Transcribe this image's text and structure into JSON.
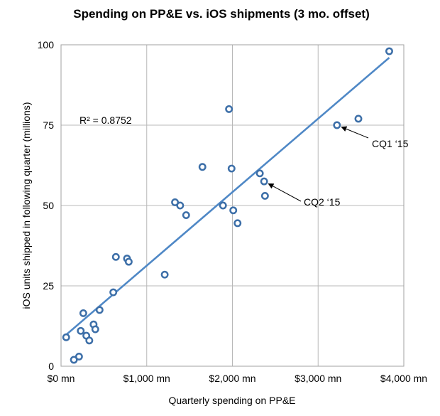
{
  "chart_data": {
    "type": "scatter",
    "title": "Spending on PP&E vs. iOS shipments (3 mo. offset)",
    "xlabel": "Quarterly spending on PP&E",
    "ylabel": "iOS units shipped in following quarter (millions)",
    "xlim": [
      0,
      4000
    ],
    "ylim": [
      0,
      100
    ],
    "x_ticks": [
      0,
      1000,
      2000,
      3000,
      4000
    ],
    "x_tick_labels": [
      "$0 mn",
      "$1,000 mn",
      "$2,000 mn",
      "$3,000 mn",
      "$4,000 mn"
    ],
    "y_ticks": [
      0,
      25,
      50,
      75,
      100
    ],
    "y_tick_labels": [
      "0",
      "25",
      "50",
      "75",
      "100"
    ],
    "grid": true,
    "legend": "none",
    "series_color": "#3d6fa8",
    "trendline_color": "#4f88c6",
    "r_squared_label": "R² = 0.8752",
    "trendline": {
      "x": [
        60,
        3830
      ],
      "y": [
        9.8,
        96.0
      ]
    },
    "points": [
      {
        "x": 60,
        "y": 9
      },
      {
        "x": 150,
        "y": 2
      },
      {
        "x": 210,
        "y": 3
      },
      {
        "x": 230,
        "y": 11
      },
      {
        "x": 260,
        "y": 16.5
      },
      {
        "x": 295,
        "y": 9.5
      },
      {
        "x": 330,
        "y": 8
      },
      {
        "x": 380,
        "y": 13
      },
      {
        "x": 400,
        "y": 11.5
      },
      {
        "x": 450,
        "y": 17.5
      },
      {
        "x": 610,
        "y": 23
      },
      {
        "x": 640,
        "y": 34
      },
      {
        "x": 770,
        "y": 33.5
      },
      {
        "x": 790,
        "y": 32.5
      },
      {
        "x": 1210,
        "y": 28.5
      },
      {
        "x": 1330,
        "y": 51
      },
      {
        "x": 1390,
        "y": 50
      },
      {
        "x": 1460,
        "y": 47
      },
      {
        "x": 1650,
        "y": 62
      },
      {
        "x": 1890,
        "y": 50
      },
      {
        "x": 1960,
        "y": 80
      },
      {
        "x": 1990,
        "y": 61.5
      },
      {
        "x": 2010,
        "y": 48.5
      },
      {
        "x": 2060,
        "y": 44.5
      },
      {
        "x": 2320,
        "y": 60
      },
      {
        "x": 2370,
        "y": 57.5
      },
      {
        "x": 2380,
        "y": 53
      },
      {
        "x": 3220,
        "y": 75
      },
      {
        "x": 3470,
        "y": 77
      },
      {
        "x": 3830,
        "y": 98
      }
    ],
    "annotations": [
      {
        "label": "CQ1 ‘15",
        "x": 3220,
        "y": 75
      },
      {
        "label": "CQ2 ‘15",
        "x": 2370,
        "y": 57.5
      }
    ]
  }
}
